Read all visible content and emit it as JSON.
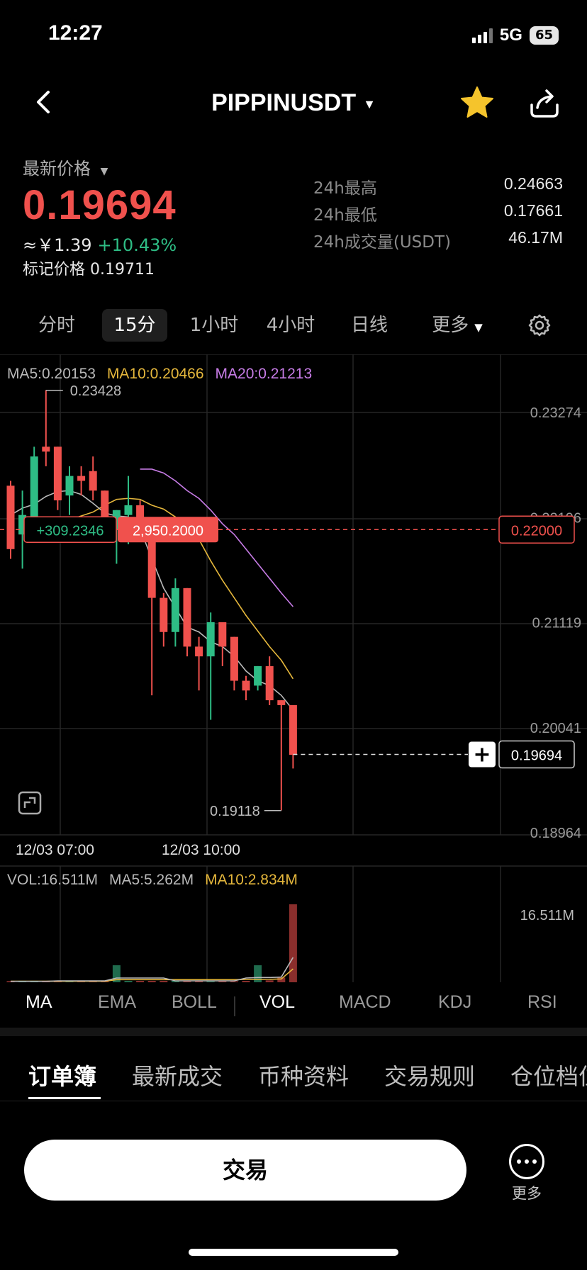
{
  "status": {
    "time": "12:27",
    "network": "5G",
    "battery": "65"
  },
  "header": {
    "symbol": "PIPPINUSDT"
  },
  "price": {
    "label": "最新价格",
    "last": "0.19694",
    "cny": "≈￥1.39",
    "change": "+10.43%",
    "mark_label": "标记价格",
    "mark_value": "0.19711"
  },
  "stats": [
    {
      "label": "24h最高",
      "value": "0.24663"
    },
    {
      "label": "24h最低",
      "value": "0.17661"
    },
    {
      "label": "24h成交量(USDT)",
      "value": "46.17M"
    }
  ],
  "timeframes": [
    {
      "label": "分时",
      "active": false
    },
    {
      "label": "15分",
      "active": true
    },
    {
      "label": "1小时",
      "active": false
    },
    {
      "label": "4小时",
      "active": false
    },
    {
      "label": "日线",
      "active": false
    },
    {
      "label": "更多",
      "active": false
    }
  ],
  "ma_legend": {
    "ma5": "MA5:0.20153",
    "ma10": "MA10:0.20466",
    "ma20": "MA20:0.21213"
  },
  "vol_legend": {
    "vol": "VOL:16.511M",
    "ma5": "MA5:5.262M",
    "ma10": "MA10:2.834M"
  },
  "colors": {
    "up": "#2ebd85",
    "down": "#f0514d",
    "ma5": "#b9b9b9",
    "ma10": "#e5b73c",
    "ma20": "#c77ce6"
  },
  "chart_data": {
    "type": "candlestick",
    "interval": "15分",
    "y_axis_labels": [
      "0.23274",
      "0.22196",
      "0.21119",
      "0.20041",
      "0.18964"
    ],
    "ylim": [
      0.18964,
      0.23274
    ],
    "x_axis_labels": [
      "12/03 07:00",
      "12/03 10:00"
    ],
    "high_marker": "0.23428",
    "low_marker": "0.19118",
    "last_price_tag": "0.19694",
    "order_line_tag": "0.22000",
    "order_pnl": "+309.2346",
    "order_qty": "2,950.2000",
    "volume_max_label": "16.511M",
    "candles": [
      {
        "o": 0.2245,
        "h": 0.225,
        "l": 0.217,
        "c": 0.218
      },
      {
        "o": 0.2195,
        "h": 0.224,
        "l": 0.216,
        "c": 0.2215
      },
      {
        "o": 0.2205,
        "h": 0.2285,
        "l": 0.2205,
        "c": 0.2275
      },
      {
        "o": 0.2285,
        "h": 0.2343,
        "l": 0.2265,
        "c": 0.228
      },
      {
        "o": 0.2285,
        "h": 0.2285,
        "l": 0.222,
        "c": 0.223
      },
      {
        "o": 0.2235,
        "h": 0.2265,
        "l": 0.2215,
        "c": 0.2255
      },
      {
        "o": 0.2255,
        "h": 0.2265,
        "l": 0.2235,
        "c": 0.225
      },
      {
        "o": 0.226,
        "h": 0.2275,
        "l": 0.223,
        "c": 0.224
      },
      {
        "o": 0.224,
        "h": 0.224,
        "l": 0.2195,
        "c": 0.221
      },
      {
        "o": 0.22,
        "h": 0.222,
        "l": 0.2165,
        "c": 0.222
      },
      {
        "o": 0.2215,
        "h": 0.2255,
        "l": 0.2185,
        "c": 0.2225
      },
      {
        "o": 0.2225,
        "h": 0.223,
        "l": 0.2195,
        "c": 0.2205
      },
      {
        "o": 0.22,
        "h": 0.22,
        "l": 0.203,
        "c": 0.213
      },
      {
        "o": 0.213,
        "h": 0.2135,
        "l": 0.208,
        "c": 0.2095
      },
      {
        "o": 0.2095,
        "h": 0.215,
        "l": 0.208,
        "c": 0.214
      },
      {
        "o": 0.214,
        "h": 0.214,
        "l": 0.207,
        "c": 0.208
      },
      {
        "o": 0.208,
        "h": 0.209,
        "l": 0.2035,
        "c": 0.207
      },
      {
        "o": 0.207,
        "h": 0.2115,
        "l": 0.2005,
        "c": 0.2105
      },
      {
        "o": 0.2105,
        "h": 0.2105,
        "l": 0.206,
        "c": 0.208
      },
      {
        "o": 0.209,
        "h": 0.209,
        "l": 0.2035,
        "c": 0.2045
      },
      {
        "o": 0.2045,
        "h": 0.205,
        "l": 0.2025,
        "c": 0.2035
      },
      {
        "o": 0.204,
        "h": 0.206,
        "l": 0.2035,
        "c": 0.206
      },
      {
        "o": 0.206,
        "h": 0.207,
        "l": 0.202,
        "c": 0.2025
      },
      {
        "o": 0.2025,
        "h": 0.2025,
        "l": 0.1912,
        "c": 0.202
      },
      {
        "o": 0.202,
        "h": 0.202,
        "l": 0.1955,
        "c": 0.1969
      }
    ],
    "ma5": [
      0.2215,
      0.2222,
      0.2226,
      0.2234,
      0.2239,
      0.224,
      0.2236,
      0.2227,
      0.2217,
      0.2214,
      0.2213,
      0.2201,
      0.217,
      0.214,
      0.212,
      0.21,
      0.2095,
      0.2085,
      0.208,
      0.207,
      0.2055,
      0.2045,
      0.204,
      0.203,
      0.2015
    ],
    "ma10": [
      0.221,
      0.2214,
      0.2218,
      0.2225,
      0.2231,
      0.2232,
      0.2231,
      0.2225,
      0.2221,
      0.2213,
      0.2202,
      0.219,
      0.2168,
      0.2148,
      0.213,
      0.2112,
      0.2096,
      0.208,
      0.2066,
      0.2047
    ],
    "ma20": [
      0.2262,
      0.2262,
      0.2258,
      0.225,
      0.224,
      0.2232,
      0.222,
      0.2206,
      0.2195,
      0.218,
      0.2165,
      0.215,
      0.2135,
      0.2121
    ],
    "volumes": [
      0.25,
      0.2,
      0.3,
      0.3,
      0.25,
      0.2,
      0.2,
      0.2,
      0.25,
      3.6,
      0.3,
      0.3,
      0.3,
      0.3,
      0.3,
      0.3,
      0.3,
      0.2,
      0.3,
      0.2,
      0.3,
      3.6,
      0.4,
      1.0,
      16.511
    ],
    "vol_ma5": [
      0.2,
      0.2,
      0.2,
      0.2,
      0.3,
      0.3,
      0.3,
      0.3,
      0.3,
      0.9,
      0.9,
      0.9,
      0.9,
      0.9,
      0.3,
      0.3,
      0.3,
      0.3,
      0.3,
      0.3,
      0.9,
      1.0,
      1.0,
      1.1,
      5.262
    ],
    "vol_ma10": [
      0.22,
      0.22,
      0.22,
      0.22,
      0.22,
      0.22,
      0.22,
      0.22,
      0.22,
      0.55,
      0.55,
      0.55,
      0.55,
      0.55,
      0.55,
      0.55,
      0.55,
      0.55,
      0.55,
      0.55,
      0.6,
      0.6,
      0.62,
      0.7,
      2.834
    ]
  },
  "indicators": [
    {
      "label": "MA",
      "selected": true
    },
    {
      "label": "EMA",
      "selected": false
    },
    {
      "label": "BOLL",
      "selected": false
    },
    {
      "label": "VOL",
      "selected": true
    },
    {
      "label": "MACD",
      "selected": false
    },
    {
      "label": "KDJ",
      "selected": false
    },
    {
      "label": "RSI",
      "selected": false
    }
  ],
  "tabs": [
    {
      "label": "订单簿",
      "selected": true
    },
    {
      "label": "最新成交",
      "selected": false
    },
    {
      "label": "币种资料",
      "selected": false
    },
    {
      "label": "交易规则",
      "selected": false
    },
    {
      "label": "仓位档位",
      "selected": false
    }
  ],
  "footer": {
    "trade": "交易",
    "more": "更多"
  }
}
